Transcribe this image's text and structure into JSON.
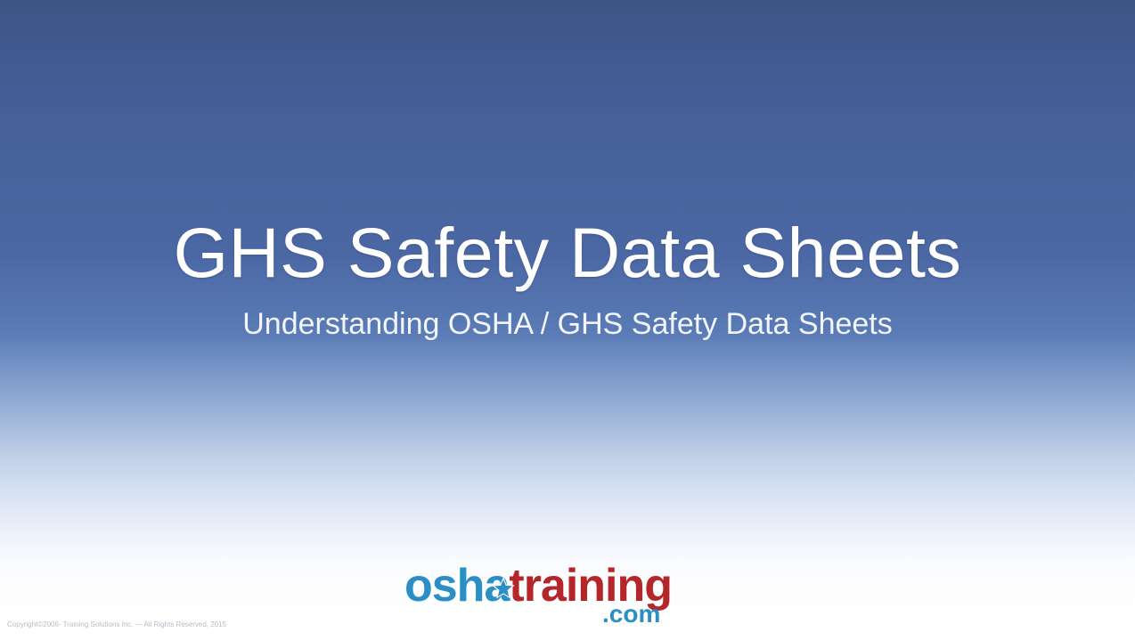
{
  "slide": {
    "title": "GHS Safety Data Sheets",
    "subtitle": "Understanding OSHA / GHS Safety Data Sheets",
    "copyright": "Copyright©2006- Training Solutions Inc. — All Rights Reserved, 2015"
  },
  "logo": {
    "part_osha": "osha",
    "part_training": "training",
    "part_com": ".com",
    "colors": {
      "blue": "#2a8fc4",
      "red": "#b5262b"
    },
    "star_icon": "star-icon"
  }
}
